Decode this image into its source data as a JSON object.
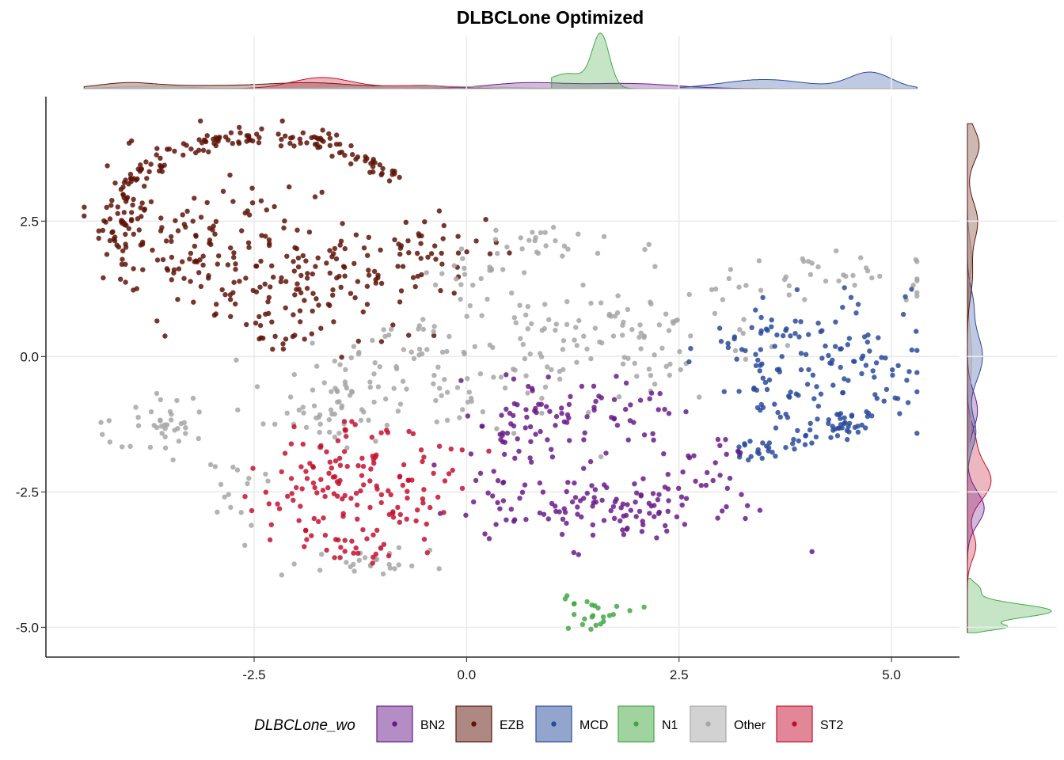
{
  "colors": {
    "BN2": "#6a1b8a",
    "EZB": "#5e1408",
    "MCD": "#2a4b9b",
    "N1": "#43a844",
    "Other": "#a6a6a6",
    "ST2": "#c4102f"
  },
  "chart_data": {
    "type": "scatter",
    "title": "DLBCLone Optimized",
    "xlabel": "",
    "ylabel": "",
    "xlim": [
      -4.95,
      5.8
    ],
    "ylim": [
      -5.55,
      4.8
    ],
    "xticks": [
      -2.5,
      0.0,
      2.5,
      5.0
    ],
    "xtick_labels": [
      "-2.5",
      "0.0",
      "2.5",
      "5.0"
    ],
    "yticks": [
      2.5,
      0.0,
      -2.5,
      -5.0
    ],
    "ytick_labels": [
      "2.5",
      "0.0",
      "-2.5",
      "-5.0"
    ],
    "grid": true,
    "marginal_density": "top and right",
    "legend": {
      "title": "DLBCLone_wo",
      "position": "bottom",
      "entries": [
        "BN2",
        "EZB",
        "MCD",
        "N1",
        "Other",
        "ST2"
      ]
    },
    "series": [
      {
        "name": "EZB",
        "regions": [
          {
            "kind": "arc",
            "cx": -2.4,
            "cy": 2.3,
            "rx": 1.85,
            "ry": 1.75,
            "a0": 150,
            "a1": 35,
            "n": 130,
            "jitter": 0.09
          },
          {
            "kind": "blob",
            "x": -4.05,
            "y": 2.45,
            "sx": 0.17,
            "sy": 0.55,
            "n": 70
          },
          {
            "kind": "blob",
            "x": -2.6,
            "y": 2.0,
            "sx": 0.65,
            "sy": 0.75,
            "n": 110
          },
          {
            "kind": "blob",
            "x": -1.6,
            "y": 1.3,
            "sx": 0.5,
            "sy": 0.55,
            "n": 60
          },
          {
            "kind": "blob",
            "x": -0.5,
            "y": 1.9,
            "sx": 0.45,
            "sy": 0.3,
            "n": 45
          },
          {
            "kind": "blob",
            "x": -2.2,
            "y": 0.5,
            "sx": 0.45,
            "sy": 0.3,
            "n": 25
          },
          {
            "kind": "blob",
            "x": -3.4,
            "y": 1.8,
            "sx": 0.4,
            "sy": 0.5,
            "n": 30
          }
        ]
      },
      {
        "name": "Other",
        "regions": [
          {
            "kind": "blob",
            "x": -0.7,
            "y": -0.4,
            "sx": 0.95,
            "sy": 0.5,
            "n": 110
          },
          {
            "kind": "blob",
            "x": 1.2,
            "y": 0.6,
            "sx": 0.7,
            "sy": 0.55,
            "n": 70
          },
          {
            "kind": "blob",
            "x": -3.6,
            "y": -1.3,
            "sx": 0.4,
            "sy": 0.3,
            "n": 40
          },
          {
            "kind": "blob",
            "x": -2.6,
            "y": -2.7,
            "sx": 0.2,
            "sy": 0.4,
            "n": 14
          },
          {
            "kind": "blob",
            "x": -1.0,
            "y": -3.85,
            "sx": 0.45,
            "sy": 0.15,
            "n": 26
          },
          {
            "kind": "blob",
            "x": 0.9,
            "y": 2.1,
            "sx": 0.5,
            "sy": 0.18,
            "n": 25
          },
          {
            "kind": "blob",
            "x": 4.1,
            "y": 1.5,
            "sx": 0.75,
            "sy": 0.28,
            "n": 40
          },
          {
            "kind": "blob",
            "x": 2.4,
            "y": 0.2,
            "sx": 0.55,
            "sy": 0.45,
            "n": 35
          },
          {
            "kind": "blob",
            "x": -1.6,
            "y": -1.1,
            "sx": 0.5,
            "sy": 0.3,
            "n": 30
          },
          {
            "kind": "blob",
            "x": 0.0,
            "y": 1.5,
            "sx": 0.25,
            "sy": 0.15,
            "n": 15
          }
        ]
      },
      {
        "name": "MCD",
        "regions": [
          {
            "kind": "blob",
            "x": 3.4,
            "y": -0.1,
            "sx": 0.35,
            "sy": 0.45,
            "n": 30
          },
          {
            "kind": "blob",
            "x": 4.7,
            "y": -0.2,
            "sx": 0.35,
            "sy": 0.6,
            "n": 55
          },
          {
            "kind": "line",
            "x0": 3.2,
            "y0": -1.85,
            "x1": 4.85,
            "y1": -1.1,
            "n": 60,
            "jitter": 0.12
          },
          {
            "kind": "blob",
            "x": 3.9,
            "y": 0.5,
            "sx": 0.45,
            "sy": 0.45,
            "n": 40
          },
          {
            "kind": "blob",
            "x": 3.9,
            "y": -0.8,
            "sx": 0.5,
            "sy": 0.35,
            "n": 25
          }
        ]
      },
      {
        "name": "BN2",
        "regions": [
          {
            "kind": "blob",
            "x": 1.8,
            "y": -2.75,
            "sx": 0.75,
            "sy": 0.35,
            "n": 110
          },
          {
            "kind": "blob",
            "x": 0.7,
            "y": -1.0,
            "sx": 0.35,
            "sy": 0.35,
            "n": 45
          },
          {
            "kind": "blob",
            "x": 1.7,
            "y": -1.0,
            "sx": 0.4,
            "sy": 0.35,
            "n": 40
          },
          {
            "kind": "blob",
            "x": 0.4,
            "y": -2.3,
            "sx": 0.3,
            "sy": 0.55,
            "n": 30
          },
          {
            "kind": "blob",
            "x": 2.9,
            "y": -2.0,
            "sx": 0.25,
            "sy": 0.25,
            "n": 15
          }
        ]
      },
      {
        "name": "ST2",
        "regions": [
          {
            "kind": "blob",
            "x": -1.75,
            "y": -2.35,
            "sx": 0.35,
            "sy": 0.45,
            "n": 70
          },
          {
            "kind": "blob",
            "x": -0.6,
            "y": -2.5,
            "sx": 0.3,
            "sy": 0.45,
            "n": 45
          },
          {
            "kind": "blob",
            "x": -1.4,
            "y": -3.5,
            "sx": 0.25,
            "sy": 0.2,
            "n": 25
          },
          {
            "kind": "blob",
            "x": -1.1,
            "y": -1.8,
            "sx": 0.3,
            "sy": 0.3,
            "n": 25
          }
        ]
      },
      {
        "name": "N1",
        "regions": [
          {
            "kind": "blob",
            "x": 1.5,
            "y": -4.7,
            "sx": 0.22,
            "sy": 0.22,
            "n": 24
          }
        ]
      }
    ],
    "x_density": [
      {
        "name": "EZB",
        "peaks": [
          {
            "m": -4.0,
            "s": 0.3,
            "w": 0.08
          },
          {
            "m": -3.2,
            "s": 0.9,
            "w": 0.06
          },
          {
            "m": -1.8,
            "s": 0.5,
            "w": 0.1
          },
          {
            "m": -0.5,
            "s": 0.35,
            "w": 0.06
          }
        ],
        "range": [
          -4.5,
          0.3
        ]
      },
      {
        "name": "ST2",
        "peaks": [
          {
            "m": -1.7,
            "s": 0.35,
            "w": 0.22
          },
          {
            "m": -0.6,
            "s": 0.35,
            "w": 0.06
          }
        ],
        "range": [
          -4.5,
          5.3
        ]
      },
      {
        "name": "BN2",
        "peaks": [
          {
            "m": 0.7,
            "s": 0.45,
            "w": 0.11
          },
          {
            "m": 1.9,
            "s": 0.55,
            "w": 0.1
          }
        ],
        "range": [
          -4.5,
          5.3
        ]
      },
      {
        "name": "N1",
        "peaks": [
          {
            "m": 1.58,
            "s": 0.1,
            "w": 1.0
          },
          {
            "m": 1.2,
            "s": 0.25,
            "w": 0.3
          }
        ],
        "range": [
          1.0,
          2.0
        ]
      },
      {
        "name": "MCD",
        "peaks": [
          {
            "m": 3.5,
            "s": 0.5,
            "w": 0.18
          },
          {
            "m": 4.75,
            "s": 0.25,
            "w": 0.32
          }
        ],
        "range": [
          2.5,
          5.3
        ]
      },
      {
        "name": "Other",
        "peaks": [
          {
            "m": -3.7,
            "s": 0.4,
            "w": 0.05
          },
          {
            "m": -0.5,
            "s": 0.8,
            "w": 0.05
          }
        ],
        "range": [
          -4.5,
          5.3
        ]
      }
    ],
    "y_density": [
      {
        "name": "N1",
        "peaks": [
          {
            "m": -4.7,
            "s": 0.13,
            "w": 1.0
          },
          {
            "m": -5.0,
            "s": 0.06,
            "w": 0.4
          },
          {
            "m": -4.3,
            "s": 0.12,
            "w": 0.15
          }
        ],
        "range": [
          -5.1,
          -4.1
        ]
      },
      {
        "name": "ST2",
        "peaks": [
          {
            "m": -2.3,
            "s": 0.35,
            "w": 0.28
          },
          {
            "m": -3.5,
            "s": 0.25,
            "w": 0.1
          },
          {
            "m": -1.5,
            "s": 0.3,
            "w": 0.08
          }
        ],
        "range": [
          -5.1,
          4.3
        ]
      },
      {
        "name": "BN2",
        "peaks": [
          {
            "m": -2.8,
            "s": 0.3,
            "w": 0.2
          },
          {
            "m": -1.0,
            "s": 0.35,
            "w": 0.12
          }
        ],
        "range": [
          -5.1,
          4.3
        ]
      },
      {
        "name": "MCD",
        "peaks": [
          {
            "m": 0.0,
            "s": 0.45,
            "w": 0.18
          },
          {
            "m": -1.4,
            "s": 0.3,
            "w": 0.1
          },
          {
            "m": 1.0,
            "s": 0.3,
            "w": 0.06
          }
        ],
        "range": [
          -5.1,
          4.3
        ]
      },
      {
        "name": "Other",
        "peaks": [
          {
            "m": 1.8,
            "s": 0.35,
            "w": 0.05
          },
          {
            "m": 0.0,
            "s": 0.5,
            "w": 0.05
          },
          {
            "m": -1.2,
            "s": 0.4,
            "w": 0.04
          }
        ],
        "range": [
          -5.1,
          4.3
        ]
      },
      {
        "name": "EZB",
        "peaks": [
          {
            "m": 3.9,
            "s": 0.3,
            "w": 0.14
          },
          {
            "m": 2.5,
            "s": 0.35,
            "w": 0.12
          },
          {
            "m": 1.5,
            "s": 0.4,
            "w": 0.06
          }
        ],
        "range": [
          -5.1,
          4.3
        ]
      }
    ]
  }
}
